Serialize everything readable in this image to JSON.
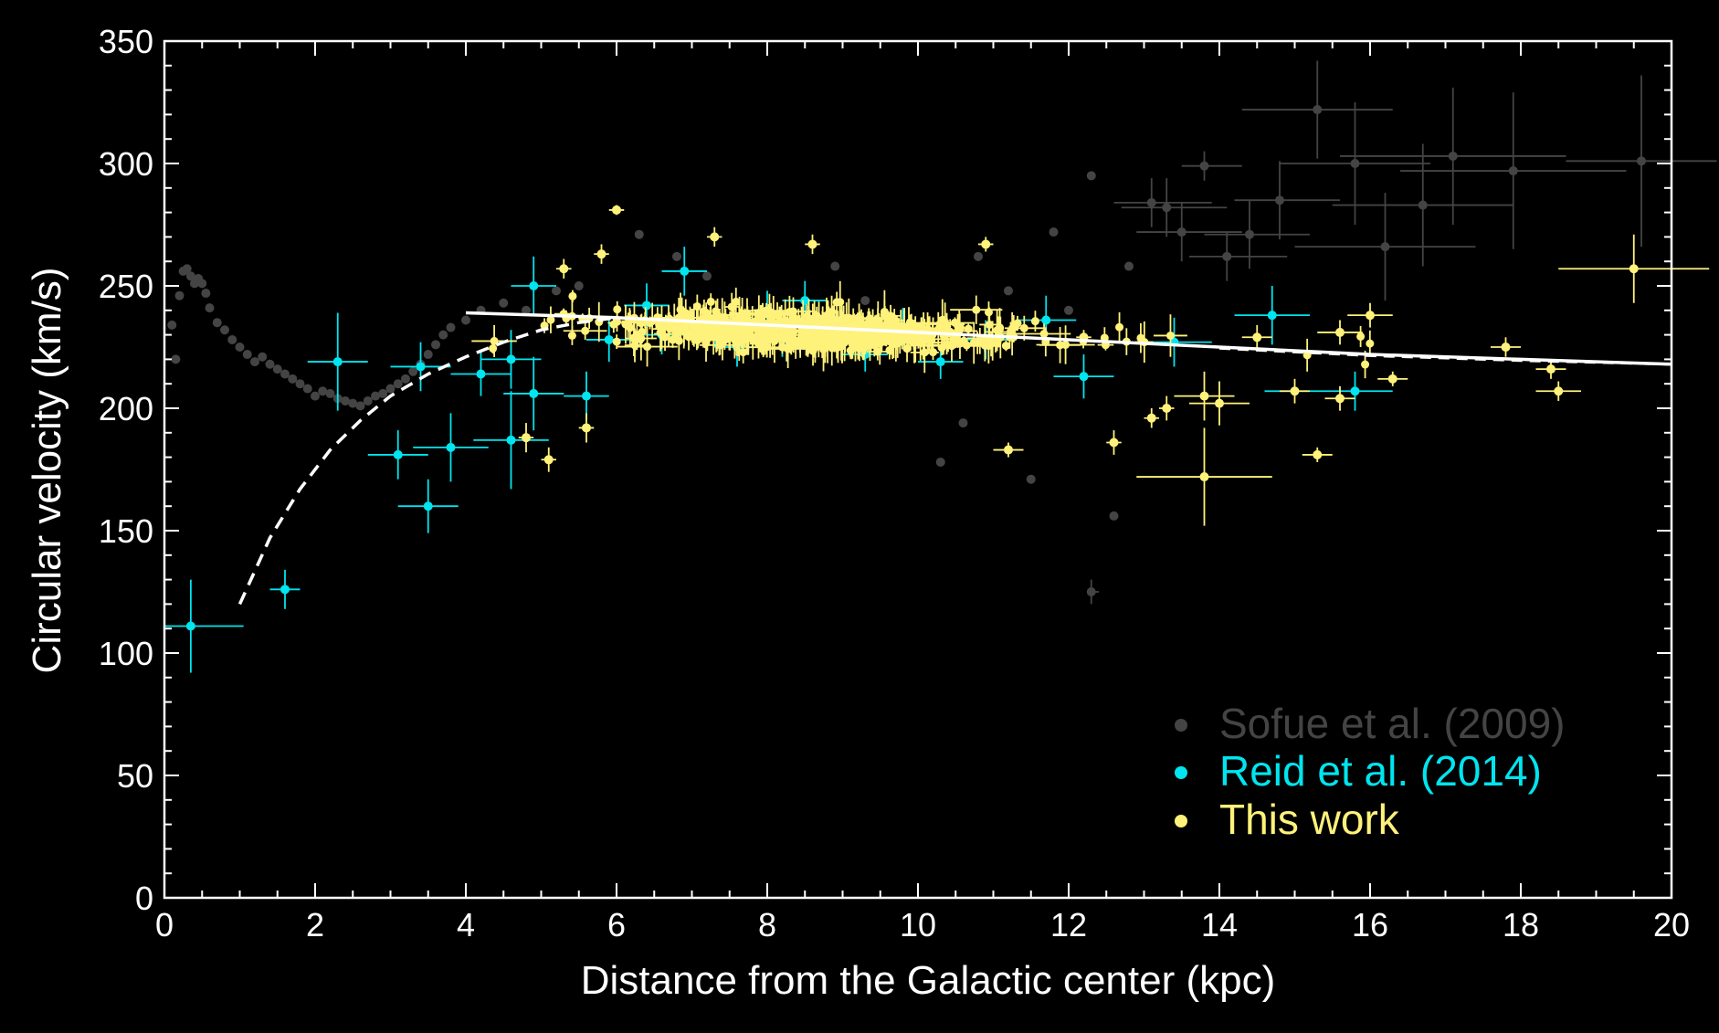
{
  "colors": {
    "background": "#000000",
    "axis": "#ffffff",
    "sofue": "#444444",
    "reid": "#00e5f0",
    "this_work": "#fff27a",
    "model": "#ffffff"
  },
  "chart_data": {
    "type": "scatter",
    "xlabel": "Distance from the Galactic center (kpc)",
    "ylabel": "Circular velocity (km/s)",
    "xlim": [
      0,
      20
    ],
    "ylim": [
      0,
      350
    ],
    "xticks": [
      0,
      2,
      4,
      6,
      8,
      10,
      12,
      14,
      16,
      18,
      20
    ],
    "yticks": [
      0,
      50,
      100,
      150,
      200,
      250,
      300,
      350
    ],
    "grid": false,
    "legend_position": "bottom-right",
    "legend": [
      {
        "key": "sofue",
        "label": "Sofue et al. (2009)"
      },
      {
        "key": "reid",
        "label": "Reid et al. (2014)"
      },
      {
        "key": "this_work",
        "label": "This work"
      }
    ],
    "series": [
      {
        "key": "sofue",
        "name": "Sofue et al. (2009)",
        "points": [
          [
            0.1,
            234,
            0,
            0,
            0
          ],
          [
            0.15,
            220,
            0,
            0,
            0
          ],
          [
            0.2,
            246,
            0,
            0,
            0
          ],
          [
            0.25,
            256,
            0,
            0,
            0
          ],
          [
            0.3,
            257,
            0,
            0,
            0
          ],
          [
            0.35,
            254,
            0,
            0,
            0
          ],
          [
            0.4,
            251,
            0,
            0,
            0
          ],
          [
            0.45,
            253,
            0,
            0,
            0
          ],
          [
            0.5,
            251,
            0,
            0,
            0
          ],
          [
            0.55,
            247,
            0,
            0,
            0
          ],
          [
            0.6,
            241,
            0,
            0,
            0
          ],
          [
            0.7,
            235,
            0,
            0,
            0
          ],
          [
            0.8,
            232,
            0,
            0,
            0
          ],
          [
            0.9,
            228,
            0,
            0,
            0
          ],
          [
            1.0,
            225,
            0,
            0,
            0
          ],
          [
            1.1,
            222,
            0,
            0,
            0
          ],
          [
            1.2,
            219,
            0,
            0,
            0
          ],
          [
            1.3,
            221,
            0,
            0,
            0
          ],
          [
            1.4,
            218,
            0,
            0,
            0
          ],
          [
            1.5,
            216,
            0,
            0,
            0
          ],
          [
            1.6,
            214,
            0,
            0,
            0
          ],
          [
            1.7,
            212,
            0,
            0,
            0
          ],
          [
            1.8,
            210,
            0,
            0,
            0
          ],
          [
            1.9,
            208,
            0,
            0,
            0
          ],
          [
            2.0,
            205,
            0,
            0,
            0
          ],
          [
            2.1,
            207,
            0,
            0,
            0
          ],
          [
            2.2,
            206,
            0,
            0,
            0
          ],
          [
            2.3,
            204,
            0,
            0,
            0
          ],
          [
            2.4,
            203,
            0,
            0,
            0
          ],
          [
            2.5,
            202,
            0,
            0,
            0
          ],
          [
            2.6,
            201,
            0,
            0,
            0
          ],
          [
            2.7,
            203,
            0,
            0,
            0
          ],
          [
            2.8,
            205,
            0,
            0,
            0
          ],
          [
            2.9,
            206,
            0,
            0,
            0
          ],
          [
            3.0,
            208,
            0,
            0,
            0
          ],
          [
            3.1,
            210,
            0,
            0,
            0
          ],
          [
            3.2,
            212,
            0,
            0,
            0
          ],
          [
            3.3,
            215,
            0,
            0,
            0
          ],
          [
            3.4,
            218,
            0,
            0,
            0
          ],
          [
            3.5,
            222,
            0,
            0,
            0
          ],
          [
            3.6,
            226,
            0,
            0,
            0
          ],
          [
            3.7,
            230,
            0,
            0,
            0
          ],
          [
            3.8,
            233,
            0,
            0,
            0
          ],
          [
            4.0,
            236,
            0,
            0,
            0
          ],
          [
            4.2,
            240,
            0,
            0,
            0
          ],
          [
            4.5,
            243,
            0,
            0,
            0
          ],
          [
            4.8,
            240,
            0,
            0,
            0
          ],
          [
            5.2,
            248,
            0,
            0,
            0
          ],
          [
            5.5,
            250,
            0,
            0,
            0
          ],
          [
            6.3,
            271,
            0,
            0,
            0
          ],
          [
            6.8,
            262,
            0,
            0,
            0
          ],
          [
            7.2,
            254,
            0,
            0,
            0
          ],
          [
            8.9,
            258,
            0,
            0,
            0
          ],
          [
            9.3,
            244,
            0,
            0,
            0
          ],
          [
            10.0,
            226,
            0,
            0,
            0
          ],
          [
            10.3,
            178,
            0,
            0,
            0
          ],
          [
            10.6,
            194,
            0,
            0,
            0
          ],
          [
            10.8,
            262,
            0,
            0,
            0
          ],
          [
            11.2,
            248,
            0,
            0,
            0
          ],
          [
            11.5,
            171,
            0,
            0,
            0
          ],
          [
            11.8,
            272,
            0,
            0,
            0
          ],
          [
            12.0,
            240,
            0,
            0,
            0
          ],
          [
            12.3,
            295,
            0,
            0,
            0
          ],
          [
            12.3,
            125,
            0.05,
            0.1,
            5
          ],
          [
            12.6,
            156,
            0,
            0,
            0
          ],
          [
            12.8,
            258,
            0,
            0,
            0
          ],
          [
            13.1,
            284,
            0.5,
            0.8,
            10
          ],
          [
            13.3,
            282,
            0.6,
            0.8,
            12
          ],
          [
            13.5,
            272,
            0.6,
            0.8,
            12
          ],
          [
            13.8,
            299,
            0.3,
            0.5,
            6
          ],
          [
            14.1,
            262,
            0.5,
            0.8,
            10
          ],
          [
            14.4,
            271,
            0.6,
            0.8,
            14
          ],
          [
            14.8,
            285,
            0.6,
            0.8,
            16
          ],
          [
            15.3,
            322,
            1.0,
            1.0,
            20
          ],
          [
            15.8,
            300,
            1.0,
            1.0,
            25
          ],
          [
            16.2,
            266,
            1.2,
            1.2,
            22
          ],
          [
            16.7,
            283,
            1.2,
            1.2,
            25
          ],
          [
            17.1,
            303,
            1.5,
            1.5,
            28
          ],
          [
            17.9,
            297,
            1.5,
            1.5,
            32
          ],
          [
            19.6,
            301,
            1.0,
            1.0,
            35
          ]
        ]
      },
      {
        "key": "reid",
        "name": "Reid et al. (2014)",
        "points": [
          [
            0.35,
            111,
            0.35,
            0.7,
            19
          ],
          [
            1.6,
            126,
            0.2,
            0.2,
            8
          ],
          [
            2.3,
            219,
            0.4,
            0.4,
            20
          ],
          [
            3.1,
            181,
            0.4,
            0.4,
            10
          ],
          [
            3.5,
            160,
            0.4,
            0.4,
            11
          ],
          [
            3.8,
            184,
            0.5,
            0.5,
            14
          ],
          [
            3.4,
            217,
            0.4,
            0.4,
            10
          ],
          [
            4.2,
            214,
            0.4,
            0.4,
            9
          ],
          [
            4.6,
            187,
            0.5,
            0.5,
            20
          ],
          [
            4.6,
            220,
            0.4,
            0.4,
            12
          ],
          [
            4.9,
            206,
            0.4,
            0.4,
            15
          ],
          [
            4.9,
            250,
            0.3,
            0.3,
            12
          ],
          [
            5.6,
            205,
            0.3,
            0.3,
            10
          ],
          [
            5.9,
            228,
            0.3,
            0.3,
            9
          ],
          [
            6.4,
            242,
            0.3,
            0.3,
            9
          ],
          [
            6.6,
            230,
            0.3,
            0.3,
            8
          ],
          [
            6.9,
            256,
            0.3,
            0.3,
            10
          ],
          [
            7.3,
            233,
            0.3,
            0.3,
            8
          ],
          [
            7.6,
            225,
            0.3,
            0.3,
            8
          ],
          [
            8.0,
            239,
            0.3,
            0.3,
            9
          ],
          [
            8.2,
            228,
            0.3,
            0.3,
            7
          ],
          [
            8.5,
            244,
            0.3,
            0.3,
            8
          ],
          [
            8.9,
            231,
            0.3,
            0.3,
            7
          ],
          [
            9.3,
            222,
            0.3,
            0.3,
            7
          ],
          [
            9.8,
            233,
            0.3,
            0.3,
            8
          ],
          [
            10.3,
            219,
            0.3,
            0.3,
            7
          ],
          [
            10.9,
            228,
            0.3,
            0.3,
            8
          ],
          [
            11.7,
            236,
            0.4,
            0.4,
            10
          ],
          [
            12.2,
            213,
            0.4,
            0.4,
            9
          ],
          [
            13.4,
            227,
            0.5,
            0.5,
            10
          ],
          [
            14.7,
            238,
            0.5,
            0.5,
            12
          ],
          [
            15.8,
            207,
            1.2,
            0.5,
            8
          ]
        ]
      },
      {
        "key": "this_work",
        "name": "This work",
        "generator": {
          "seed": 7,
          "count": 620,
          "x_range": [
            4.0,
            16.0
          ],
          "center_ratio": 0.92
        },
        "points": [
          [
            6.0,
            281,
            0.1,
            0.1,
            2
          ],
          [
            5.3,
            257,
            0.1,
            0.1,
            4
          ],
          [
            5.8,
            263,
            0.1,
            0.1,
            4
          ],
          [
            7.3,
            270,
            0.1,
            0.1,
            4
          ],
          [
            8.6,
            267,
            0.1,
            0.1,
            4
          ],
          [
            10.9,
            267,
            0.1,
            0.1,
            3
          ],
          [
            12.2,
            229,
            0.1,
            0.1,
            3
          ],
          [
            13.1,
            196,
            0.1,
            0.1,
            4
          ],
          [
            13.3,
            200,
            0.1,
            0.1,
            5
          ],
          [
            13.8,
            172,
            0.9,
            0.9,
            20
          ],
          [
            13.8,
            205,
            0.4,
            0.4,
            10
          ],
          [
            14.0,
            202,
            0.4,
            0.4,
            9
          ],
          [
            15.3,
            181,
            0.2,
            0.2,
            3
          ],
          [
            11.2,
            183,
            0.2,
            0.2,
            3
          ],
          [
            12.6,
            186,
            0.1,
            0.1,
            5
          ],
          [
            4.8,
            188,
            0.1,
            0.1,
            6
          ],
          [
            5.1,
            179,
            0.1,
            0.1,
            5
          ],
          [
            5.6,
            192,
            0.1,
            0.1,
            6
          ],
          [
            15.6,
            204,
            0.2,
            0.2,
            5
          ],
          [
            15.6,
            231,
            0.3,
            0.3,
            5
          ],
          [
            16.0,
            238,
            0.3,
            0.3,
            5
          ],
          [
            16.3,
            212,
            0.2,
            0.2,
            3
          ],
          [
            17.8,
            225,
            0.2,
            0.2,
            4
          ],
          [
            18.4,
            216,
            0.2,
            0.2,
            4
          ],
          [
            18.5,
            207,
            0.3,
            0.3,
            4
          ],
          [
            19.5,
            257,
            1.0,
            1.0,
            14
          ],
          [
            14.5,
            229,
            0.2,
            0.2,
            5
          ],
          [
            15.0,
            207,
            0.2,
            0.2,
            5
          ]
        ]
      }
    ],
    "model_curve": {
      "dashed": [
        [
          1.0,
          120
        ],
        [
          1.4,
          147
        ],
        [
          1.8,
          167
        ],
        [
          2.2,
          183
        ],
        [
          2.6,
          195
        ],
        [
          3.0,
          205
        ],
        [
          3.5,
          214
        ],
        [
          4.0,
          221
        ],
        [
          4.5,
          227
        ],
        [
          5.0,
          232
        ],
        [
          5.5,
          235
        ],
        [
          6.0,
          237
        ]
      ],
      "solid": [
        [
          4.0,
          239
        ],
        [
          6.0,
          237
        ],
        [
          8.0,
          234
        ],
        [
          10.0,
          231
        ],
        [
          12.0,
          228
        ],
        [
          14.0,
          225
        ],
        [
          16.0,
          222
        ],
        [
          18.0,
          220
        ],
        [
          20.0,
          218
        ]
      ],
      "dashed_outer": [
        [
          14.0,
          224.5
        ],
        [
          16.0,
          221.5
        ],
        [
          18.0,
          219.5
        ],
        [
          20.0,
          218
        ]
      ]
    }
  }
}
